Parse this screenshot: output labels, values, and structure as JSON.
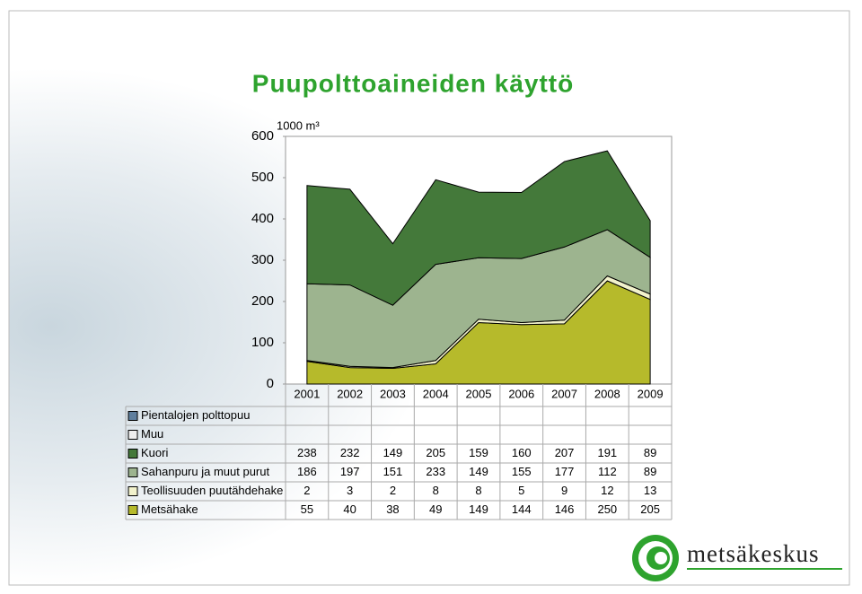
{
  "chart_data": {
    "type": "stacked_area",
    "title": "Puupolttoaineiden käyttö",
    "ylabel": "1000 m³",
    "categories": [
      "2001",
      "2002",
      "2003",
      "2004",
      "2005",
      "2006",
      "2007",
      "2008",
      "2009"
    ],
    "series": [
      {
        "name": "Pientalojen polttopuu",
        "color": "#5f7f9e",
        "values": [
          null,
          null,
          null,
          null,
          null,
          null,
          null,
          null,
          null
        ]
      },
      {
        "name": "Muu",
        "color": "#eeeeee",
        "values": [
          null,
          null,
          null,
          null,
          null,
          null,
          null,
          null,
          null
        ]
      },
      {
        "name": "Kuori",
        "color": "#44793a",
        "values": [
          238,
          232,
          149,
          205,
          159,
          160,
          207,
          191,
          89
        ]
      },
      {
        "name": "Sahanpuru ja muut purut",
        "color": "#9db48f",
        "values": [
          186,
          197,
          151,
          233,
          149,
          155,
          177,
          112,
          89
        ]
      },
      {
        "name": "Teollisuuden puutähdehake",
        "color": "#f2f2cc",
        "values": [
          2,
          3,
          2,
          8,
          8,
          5,
          9,
          12,
          13
        ]
      },
      {
        "name": "Metsähake",
        "color": "#b6ba2b",
        "values": [
          55,
          40,
          38,
          49,
          149,
          144,
          146,
          250,
          205
        ]
      }
    ],
    "ylim": [
      0,
      600
    ],
    "yticks": [
      0,
      100,
      200,
      300,
      400,
      500,
      600
    ],
    "logo": "metsäkeskus"
  }
}
